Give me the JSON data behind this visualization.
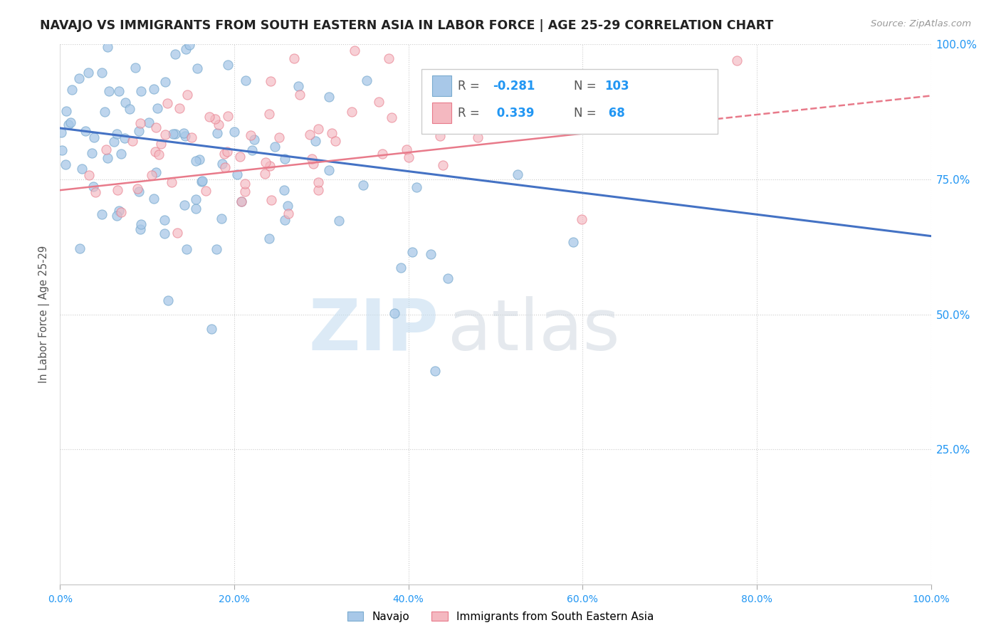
{
  "title": "NAVAJO VS IMMIGRANTS FROM SOUTH EASTERN ASIA IN LABOR FORCE | AGE 25-29 CORRELATION CHART",
  "source": "Source: ZipAtlas.com",
  "ylabel": "In Labor Force | Age 25-29",
  "legend_label1": "Navajo",
  "legend_label2": "Immigrants from South Eastern Asia",
  "r1": "-0.281",
  "n1": "103",
  "r2": "0.339",
  "n2": "68",
  "color_blue": "#a8c8e8",
  "color_blue_edge": "#7aabcf",
  "color_pink": "#f4b8c0",
  "color_pink_edge": "#e87a8a",
  "color_blue_line": "#4472c4",
  "color_pink_line": "#e87a8a",
  "watermark_zip_color": "#c5ddf0",
  "watermark_atlas_color": "#d0d8e0",
  "navajo_trend_x0": 0.0,
  "navajo_trend_x1": 1.0,
  "navajo_trend_y0": 0.845,
  "navajo_trend_y1": 0.645,
  "sea_trend_x0": 0.0,
  "sea_trend_x1": 1.0,
  "sea_trend_y0": 0.73,
  "sea_trend_y1": 0.905,
  "xlim": [
    0.0,
    1.0
  ],
  "ylim": [
    0.0,
    1.0
  ],
  "ytick_positions": [
    0.0,
    0.25,
    0.5,
    0.75,
    1.0
  ],
  "ytick_labels_right": [
    "",
    "25.0%",
    "50.0%",
    "75.0%",
    "100.0%"
  ],
  "xtick_positions": [
    0.0,
    0.2,
    0.4,
    0.6,
    0.8,
    1.0
  ],
  "xtick_labels": [
    "0.0%",
    "20.0%",
    "40.0%",
    "60.0%",
    "80.0%",
    "100.0%"
  ],
  "navajo_seed": 77,
  "sea_seed": 42
}
